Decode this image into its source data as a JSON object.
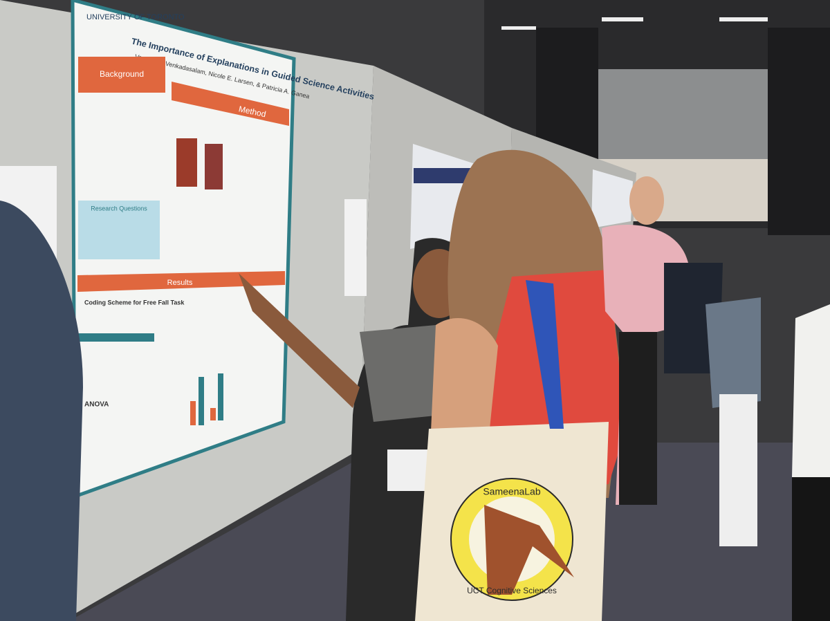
{
  "poster": {
    "institution": "UNIVERSITY OF TORONTO",
    "title": "The Importance of Explanations in Guided Science Activities",
    "authors": "Vaunam P. Venkadasalam, Nicole E. Larsen, & Patricia A. Ganea",
    "sections": [
      "Background",
      "Method",
      "Results"
    ],
    "research_questions": "Research Questions",
    "coding_heading": "Coding Scheme for Free Fall Task",
    "anova": "ANOVA"
  },
  "bag": {
    "top": "SameenaLab",
    "bottom": "UCT Cognitive Sciences"
  }
}
